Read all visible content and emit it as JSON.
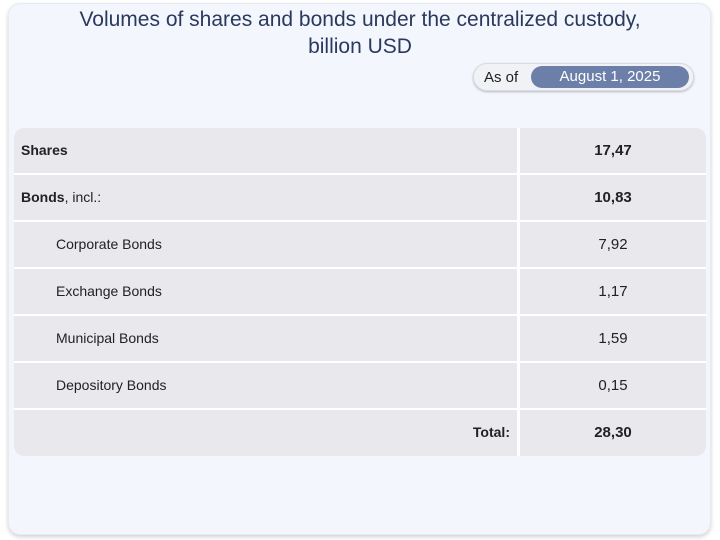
{
  "title_line1": "Volumes of shares and bonds under the centralized custody,",
  "title_line2": "billion USD",
  "as_of": {
    "label": "As of",
    "date": "August 1, 2025"
  },
  "table": {
    "shares": {
      "label": "Shares",
      "value": "17,47"
    },
    "bonds": {
      "label": "Bonds",
      "suffix": ", incl.:",
      "value": "10,83"
    },
    "corporate": {
      "label": "Corporate Bonds",
      "value": "7,92"
    },
    "exchange": {
      "label": "Exchange Bonds",
      "value": "1,17"
    },
    "municipal": {
      "label": "Municipal Bonds",
      "value": "1,59"
    },
    "depository": {
      "label": "Depository Bonds",
      "value": "0,15"
    },
    "total": {
      "label": "Total:",
      "value": "28,30"
    }
  }
}
